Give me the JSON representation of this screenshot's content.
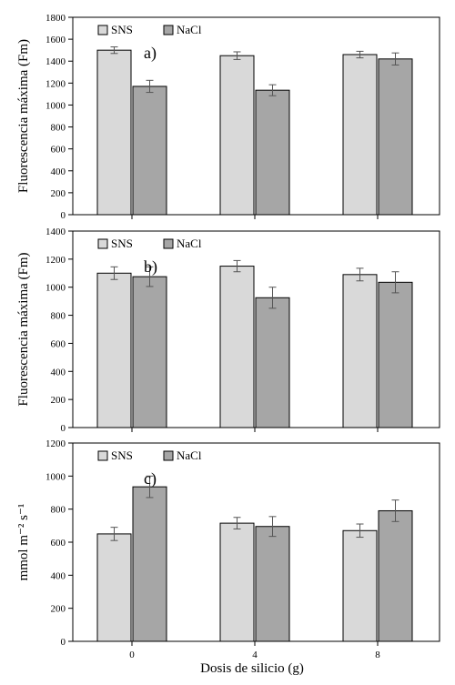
{
  "colors": {
    "SNS": "#d9d9d9",
    "NaCl": "#a6a6a6",
    "axis": "#000000",
    "errorbar": "#555555"
  },
  "xlabel": "Dosis de silicio  (g)",
  "chart_data": [
    {
      "type": "bar",
      "panel_label": "a)",
      "ylabel": "Fluorescencia máxima  (Fm)",
      "ylim": [
        0,
        1800
      ],
      "yticks": [
        0,
        200,
        400,
        600,
        800,
        1000,
        1200,
        1400,
        1600,
        1800
      ],
      "categories": [
        "",
        "",
        ""
      ],
      "series": [
        {
          "name": "SNS",
          "values": [
            1500,
            1450,
            1460
          ],
          "errors": [
            30,
            35,
            30
          ]
        },
        {
          "name": "NaCl",
          "values": [
            1170,
            1135,
            1420
          ],
          "errors": [
            55,
            50,
            55
          ]
        }
      ],
      "legend": "top-left",
      "grid": false
    },
    {
      "type": "bar",
      "panel_label": "b)",
      "ylabel": "Fluorescencia máxima  (Fm)",
      "ylim": [
        0,
        1400
      ],
      "yticks": [
        0,
        200,
        400,
        600,
        800,
        1000,
        1200,
        1400
      ],
      "categories": [
        "",
        "",
        ""
      ],
      "series": [
        {
          "name": "SNS",
          "values": [
            1100,
            1150,
            1090
          ],
          "errors": [
            45,
            40,
            45
          ]
        },
        {
          "name": "NaCl",
          "values": [
            1075,
            925,
            1035
          ],
          "errors": [
            70,
            75,
            75
          ]
        }
      ],
      "legend": "top-left",
      "grid": false
    },
    {
      "type": "bar",
      "panel_label": "c)",
      "ylabel": "mmol m⁻² s⁻¹",
      "ylim": [
        0,
        1200
      ],
      "yticks": [
        0,
        200,
        400,
        600,
        800,
        1000,
        1200
      ],
      "categories": [
        "0",
        "4",
        "8"
      ],
      "series": [
        {
          "name": "SNS",
          "values": [
            650,
            715,
            670
          ],
          "errors": [
            40,
            35,
            40
          ]
        },
        {
          "name": "NaCl",
          "values": [
            935,
            695,
            790
          ],
          "errors": [
            65,
            60,
            65
          ]
        }
      ],
      "legend": "top-left",
      "grid": false
    }
  ]
}
